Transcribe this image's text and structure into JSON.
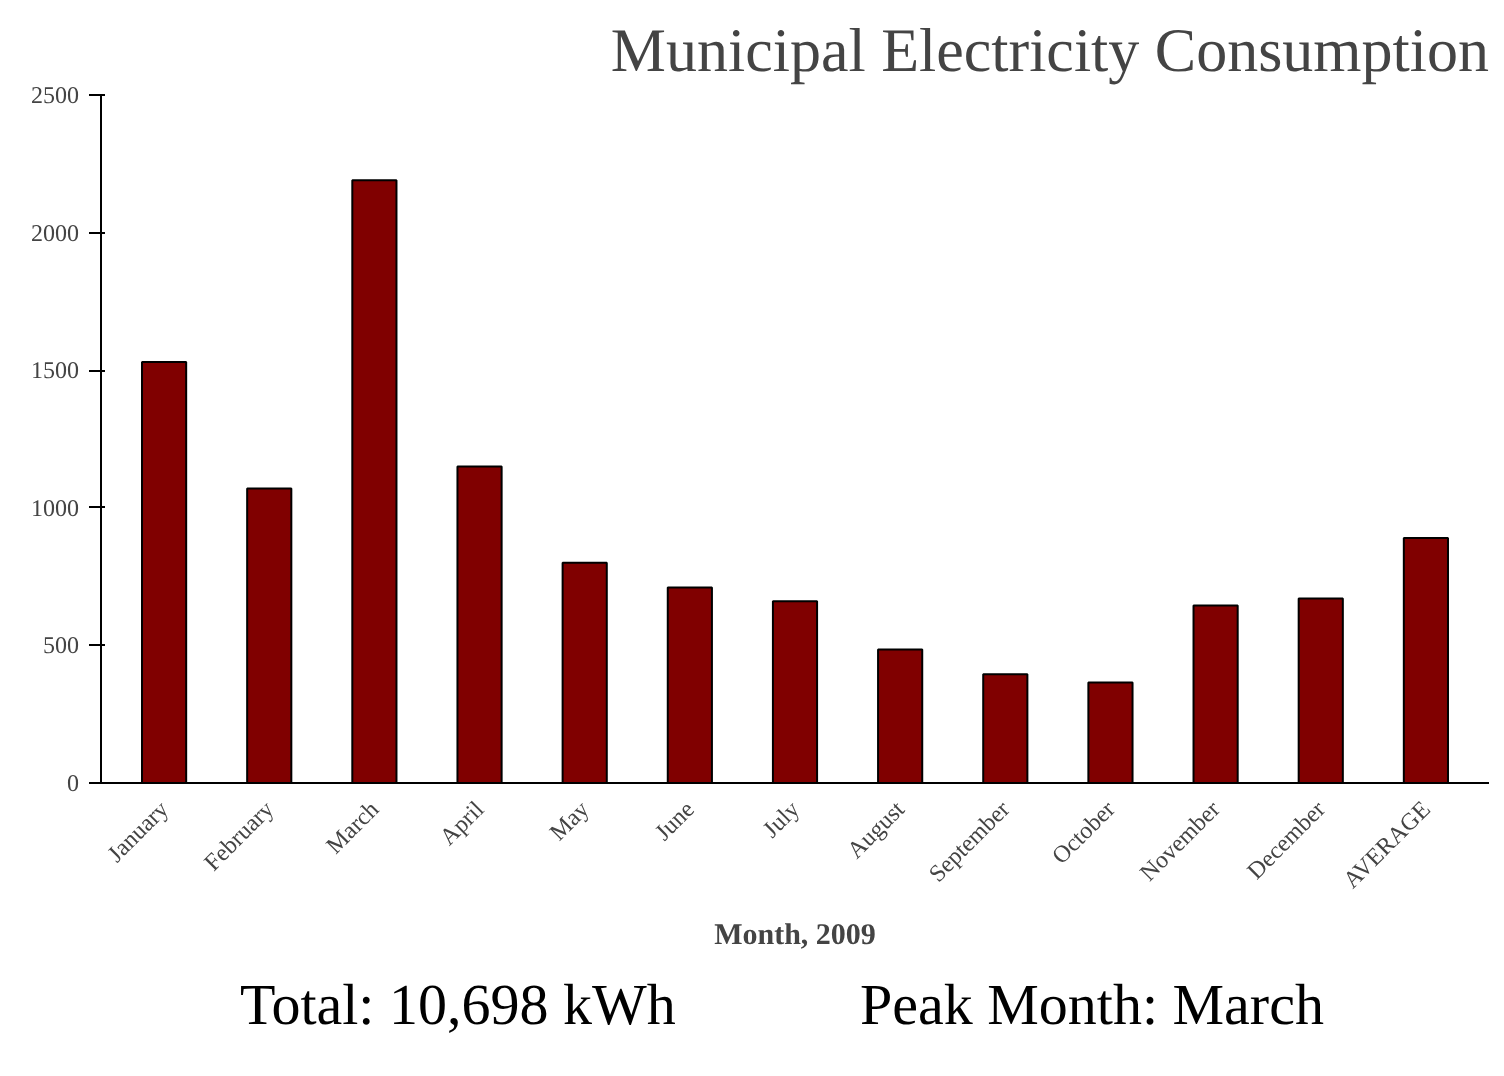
{
  "chart_data": {
    "type": "bar",
    "title": "Municipal Electricity Consumption",
    "xlabel": "Month, 2009",
    "categories": [
      "January",
      "February",
      "March",
      "April",
      "May",
      "June",
      "July",
      "August",
      "September",
      "October",
      "November",
      "December",
      "AVERAGE"
    ],
    "values": [
      1530,
      1070,
      2190,
      1150,
      800,
      710,
      660,
      485,
      395,
      365,
      645,
      670,
      890
    ],
    "color": "#800000",
    "ylim": [
      0,
      2500
    ],
    "yticks": [
      0,
      500,
      1000,
      1500,
      2000,
      2500
    ],
    "grid": false,
    "annotations": [
      "Total: 10,698 kWh",
      "Peak Month: March"
    ]
  }
}
